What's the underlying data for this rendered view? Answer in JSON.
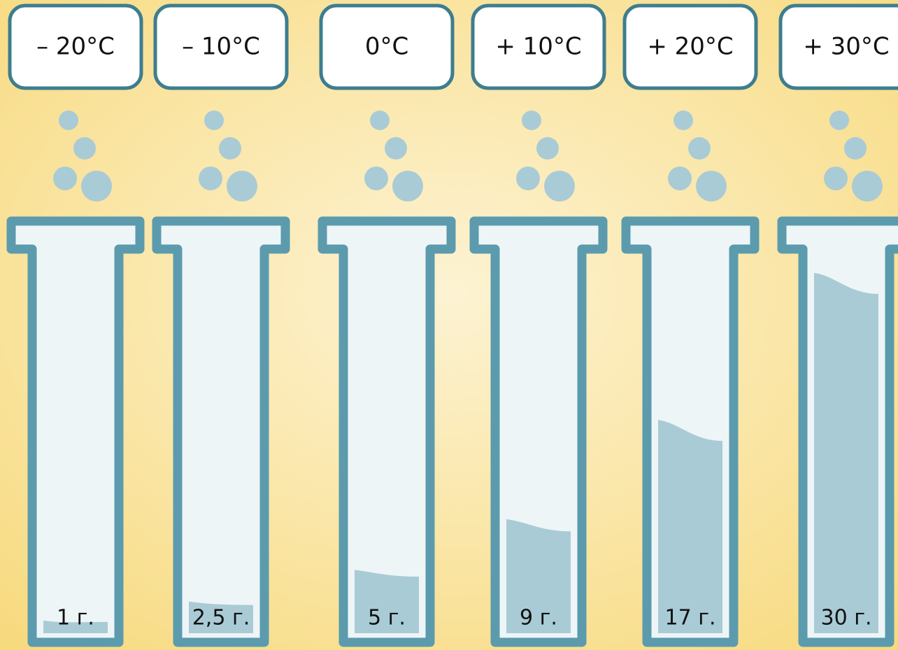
{
  "chart_data": {
    "type": "tube",
    "categories": [
      "– 20°C",
      "– 10°C",
      "0°C",
      "+ 10°C",
      "+ 20°C",
      "+ 30°C"
    ],
    "values": [
      1,
      2.5,
      5,
      9,
      17,
      30
    ],
    "value_labels": [
      "1 г.",
      "2,5 г.",
      "5 г.",
      "9 г.",
      "17 г.",
      "30 г."
    ],
    "color": "#a9cbd5"
  }
}
